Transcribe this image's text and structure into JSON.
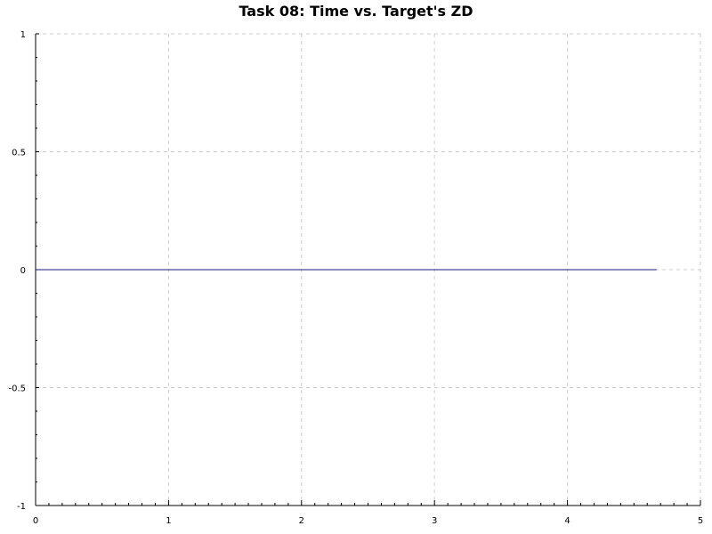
{
  "chart_data": {
    "type": "line",
    "title": "Task 08: Time vs. Target's ZD",
    "xlabel": "",
    "ylabel": "",
    "xlim": [
      0,
      5
    ],
    "ylim": [
      -1,
      1
    ],
    "x_ticks": [
      "0",
      "1",
      "2",
      "3",
      "4",
      "5"
    ],
    "y_ticks": [
      "1",
      "0.5",
      "0",
      "-0.5",
      "-1"
    ],
    "grid": true,
    "legend": "none",
    "series": [
      {
        "color": "#1a1a7a",
        "x": [
          0,
          4.67
        ],
        "y": [
          0,
          0
        ]
      }
    ]
  }
}
